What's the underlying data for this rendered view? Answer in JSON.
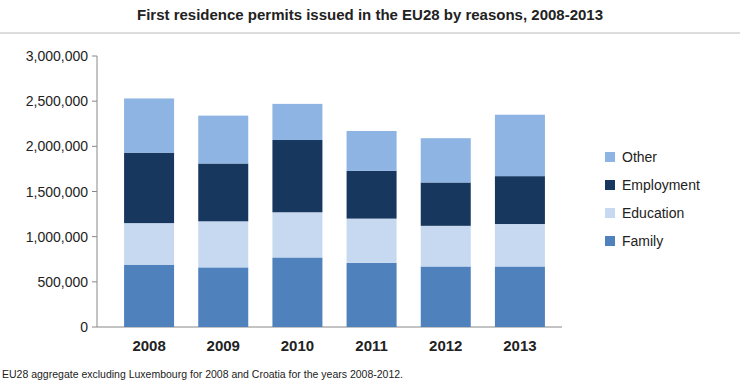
{
  "chart_data": {
    "type": "bar",
    "title": "First residence permits issued in the EU28 by reasons, 2008-2013",
    "categories": [
      "2008",
      "2009",
      "2010",
      "2011",
      "2012",
      "2013"
    ],
    "series": [
      {
        "name": "Family",
        "color": "#4f81bd",
        "values": [
          690000,
          660000,
          770000,
          710000,
          670000,
          670000
        ]
      },
      {
        "name": "Education",
        "color": "#c6d9f1",
        "values": [
          460000,
          510000,
          500000,
          490000,
          450000,
          470000
        ]
      },
      {
        "name": "Employment",
        "color": "#17375e",
        "values": [
          780000,
          640000,
          800000,
          530000,
          480000,
          530000
        ]
      },
      {
        "name": "Other",
        "color": "#8db4e2",
        "values": [
          600000,
          530000,
          400000,
          440000,
          490000,
          680000
        ]
      }
    ],
    "stacked": true,
    "ylim": [
      0,
      3000000
    ],
    "yticks": [
      0,
      {
        "value": 500000,
        "label": "500,000"
      },
      {
        "value": 1000000,
        "label": "1,000,000"
      },
      {
        "value": 1500000,
        "label": "1,500,000"
      },
      {
        "value": 2000000,
        "label": "2,000,000"
      },
      {
        "value": 2500000,
        "label": "2,500,000"
      },
      {
        "value": 3000000,
        "label": "3,000,000"
      }
    ],
    "grid": false,
    "legend": "right",
    "annotations": [
      "EU28 aggregate excluding Luxembourg for 2008 and Croatia for the years 2008-2012."
    ]
  }
}
